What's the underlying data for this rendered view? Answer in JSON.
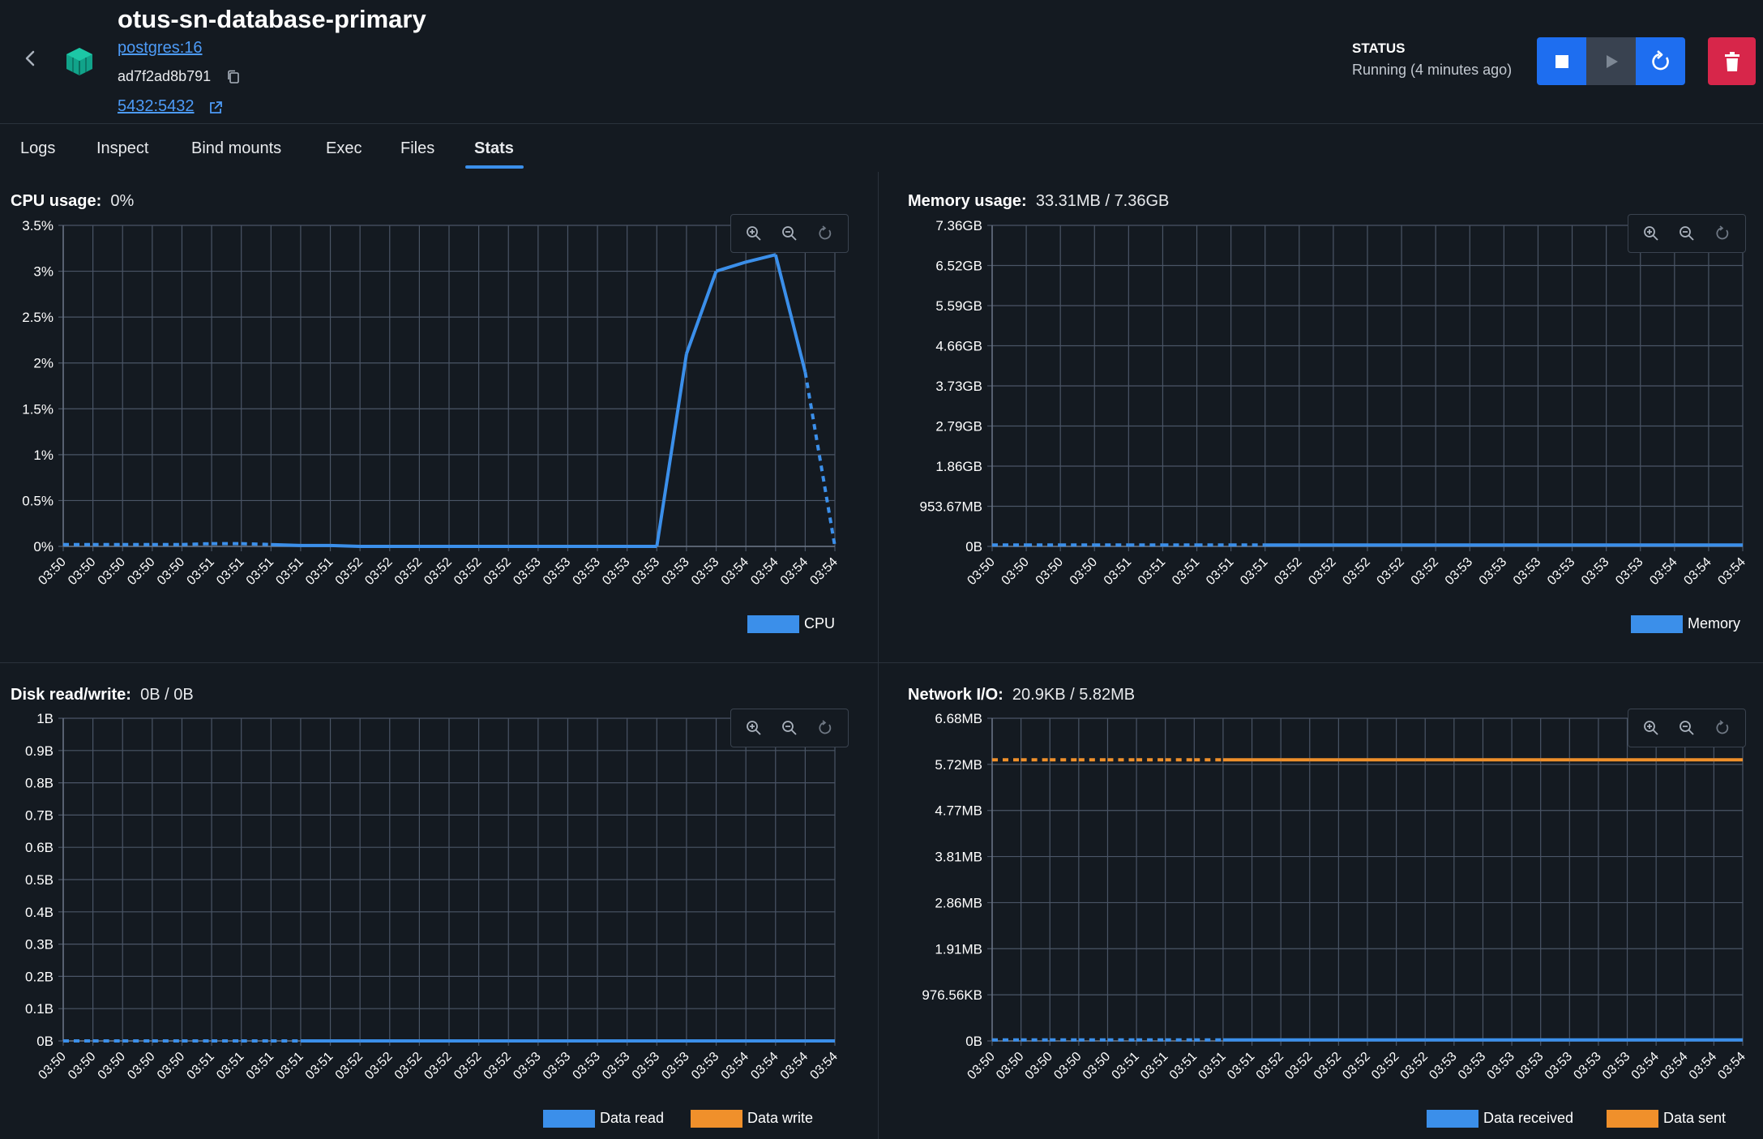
{
  "header": {
    "title": "otus-sn-database-primary",
    "image": "postgres:16",
    "container_id": "ad7f2ad8b791",
    "ports": "5432:5432",
    "status_label": "STATUS",
    "status_value": "Running (4 minutes ago)"
  },
  "tabs": [
    {
      "label": "Logs"
    },
    {
      "label": "Inspect"
    },
    {
      "label": "Bind mounts"
    },
    {
      "label": "Exec"
    },
    {
      "label": "Files"
    },
    {
      "label": "Stats",
      "active": true
    }
  ],
  "colors": {
    "blue": "#3b8fea",
    "orange": "#f0902b",
    "grid": "#4a5566"
  },
  "chart_data": [
    {
      "id": "cpu",
      "type": "line",
      "title": "CPU usage:",
      "value": "0%",
      "yticks": [
        "3.5%",
        "3%",
        "2.5%",
        "2%",
        "1.5%",
        "1%",
        "0.5%",
        "0%"
      ],
      "ylim": [
        0,
        3.5
      ],
      "x": [
        "03:50",
        "03:50",
        "03:50",
        "03:50",
        "03:50",
        "03:51",
        "03:51",
        "03:51",
        "03:51",
        "03:51",
        "03:52",
        "03:52",
        "03:52",
        "03:52",
        "03:52",
        "03:52",
        "03:53",
        "03:53",
        "03:53",
        "03:53",
        "03:53",
        "03:53",
        "03:53",
        "03:54",
        "03:54",
        "03:54",
        "03:54"
      ],
      "legend": [
        {
          "name": "CPU",
          "color": "#3b8fea"
        }
      ],
      "series": [
        {
          "name": "CPU",
          "color": "#3b8fea",
          "values": [
            0.02,
            0.02,
            0.02,
            0.02,
            0.02,
            0.03,
            0.03,
            0.02,
            0.01,
            0.01,
            0.0,
            0.0,
            0.0,
            0.0,
            0.0,
            0.0,
            0.0,
            0.0,
            0.0,
            0.0,
            0.0,
            2.1,
            3.0,
            3.1,
            3.18,
            1.9,
            0.0
          ],
          "dashed": [
            [
              0,
              7
            ],
            [
              25,
              26
            ]
          ]
        }
      ]
    },
    {
      "id": "mem",
      "type": "line",
      "title": "Memory usage:",
      "value": "33.31MB / 7.36GB",
      "yticks": [
        "7.36GB",
        "6.52GB",
        "5.59GB",
        "4.66GB",
        "3.73GB",
        "2.79GB",
        "1.86GB",
        "953.67MB",
        "0B"
      ],
      "ylim": [
        0,
        7.36
      ],
      "x": [
        "03:50",
        "03:50",
        "03:50",
        "03:50",
        "03:51",
        "03:51",
        "03:51",
        "03:51",
        "03:51",
        "03:52",
        "03:52",
        "03:52",
        "03:52",
        "03:52",
        "03:53",
        "03:53",
        "03:53",
        "03:53",
        "03:53",
        "03:53",
        "03:54",
        "03:54",
        "03:54"
      ],
      "legend": [
        {
          "name": "Memory",
          "color": "#3b8fea"
        }
      ],
      "series": [
        {
          "name": "Memory",
          "color": "#3b8fea",
          "values": [
            0.033,
            0.033,
            0.033,
            0.033,
            0.033,
            0.033,
            0.033,
            0.033,
            0.033,
            0.033,
            0.033,
            0.033,
            0.033,
            0.033,
            0.033,
            0.033,
            0.033,
            0.033,
            0.033,
            0.033,
            0.033,
            0.033,
            0.033
          ],
          "dashed": [
            [
              0,
              8
            ]
          ]
        }
      ]
    },
    {
      "id": "disk",
      "type": "line",
      "title": "Disk read/write:",
      "value": "0B / 0B",
      "yticks": [
        "1B",
        "0.9B",
        "0.8B",
        "0.7B",
        "0.6B",
        "0.5B",
        "0.4B",
        "0.3B",
        "0.2B",
        "0.1B",
        "0B"
      ],
      "ylim": [
        0,
        1
      ],
      "x": [
        "03:50",
        "03:50",
        "03:50",
        "03:50",
        "03:50",
        "03:51",
        "03:51",
        "03:51",
        "03:51",
        "03:51",
        "03:52",
        "03:52",
        "03:52",
        "03:52",
        "03:52",
        "03:52",
        "03:53",
        "03:53",
        "03:53",
        "03:53",
        "03:53",
        "03:53",
        "03:53",
        "03:54",
        "03:54",
        "03:54",
        "03:54"
      ],
      "legend": [
        {
          "name": "Data read",
          "color": "#3b8fea"
        },
        {
          "name": "Data write",
          "color": "#f0902b"
        }
      ],
      "series": [
        {
          "name": "Data read",
          "color": "#3b8fea",
          "values": [
            0,
            0,
            0,
            0,
            0,
            0,
            0,
            0,
            0,
            0,
            0,
            0,
            0,
            0,
            0,
            0,
            0,
            0,
            0,
            0,
            0,
            0,
            0,
            0,
            0,
            0,
            0
          ],
          "dashed": [
            [
              0,
              8
            ]
          ]
        }
      ]
    },
    {
      "id": "net",
      "type": "line",
      "title": "Network I/O:",
      "value": "20.9KB / 5.82MB",
      "yticks": [
        "6.68MB",
        "5.72MB",
        "4.77MB",
        "3.81MB",
        "2.86MB",
        "1.91MB",
        "976.56KB",
        "0B"
      ],
      "ylim": [
        0,
        6.68
      ],
      "x": [
        "03:50",
        "03:50",
        "03:50",
        "03:50",
        "03:50",
        "03:51",
        "03:51",
        "03:51",
        "03:51",
        "03:51",
        "03:52",
        "03:52",
        "03:52",
        "03:52",
        "03:52",
        "03:52",
        "03:53",
        "03:53",
        "03:53",
        "03:53",
        "03:53",
        "03:53",
        "03:53",
        "03:54",
        "03:54",
        "03:54",
        "03:54"
      ],
      "legend": [
        {
          "name": "Data received",
          "color": "#3b8fea"
        },
        {
          "name": "Data sent",
          "color": "#f0902b"
        }
      ],
      "series": [
        {
          "name": "Data received",
          "color": "#3b8fea",
          "values": [
            0.02,
            0.02,
            0.02,
            0.02,
            0.02,
            0.02,
            0.02,
            0.02,
            0.02,
            0.02,
            0.02,
            0.02,
            0.02,
            0.02,
            0.02,
            0.02,
            0.02,
            0.02,
            0.02,
            0.02,
            0.02,
            0.02,
            0.02,
            0.02,
            0.02,
            0.02,
            0.02
          ],
          "dashed": [
            [
              0,
              8
            ]
          ]
        },
        {
          "name": "Data sent",
          "color": "#f0902b",
          "values": [
            5.82,
            5.82,
            5.82,
            5.82,
            5.82,
            5.82,
            5.82,
            5.82,
            5.82,
            5.82,
            5.82,
            5.82,
            5.82,
            5.82,
            5.82,
            5.82,
            5.82,
            5.82,
            5.82,
            5.82,
            5.82,
            5.82,
            5.82,
            5.82,
            5.82,
            5.82,
            5.82
          ],
          "dashed": [
            [
              0,
              8
            ]
          ]
        }
      ]
    }
  ]
}
